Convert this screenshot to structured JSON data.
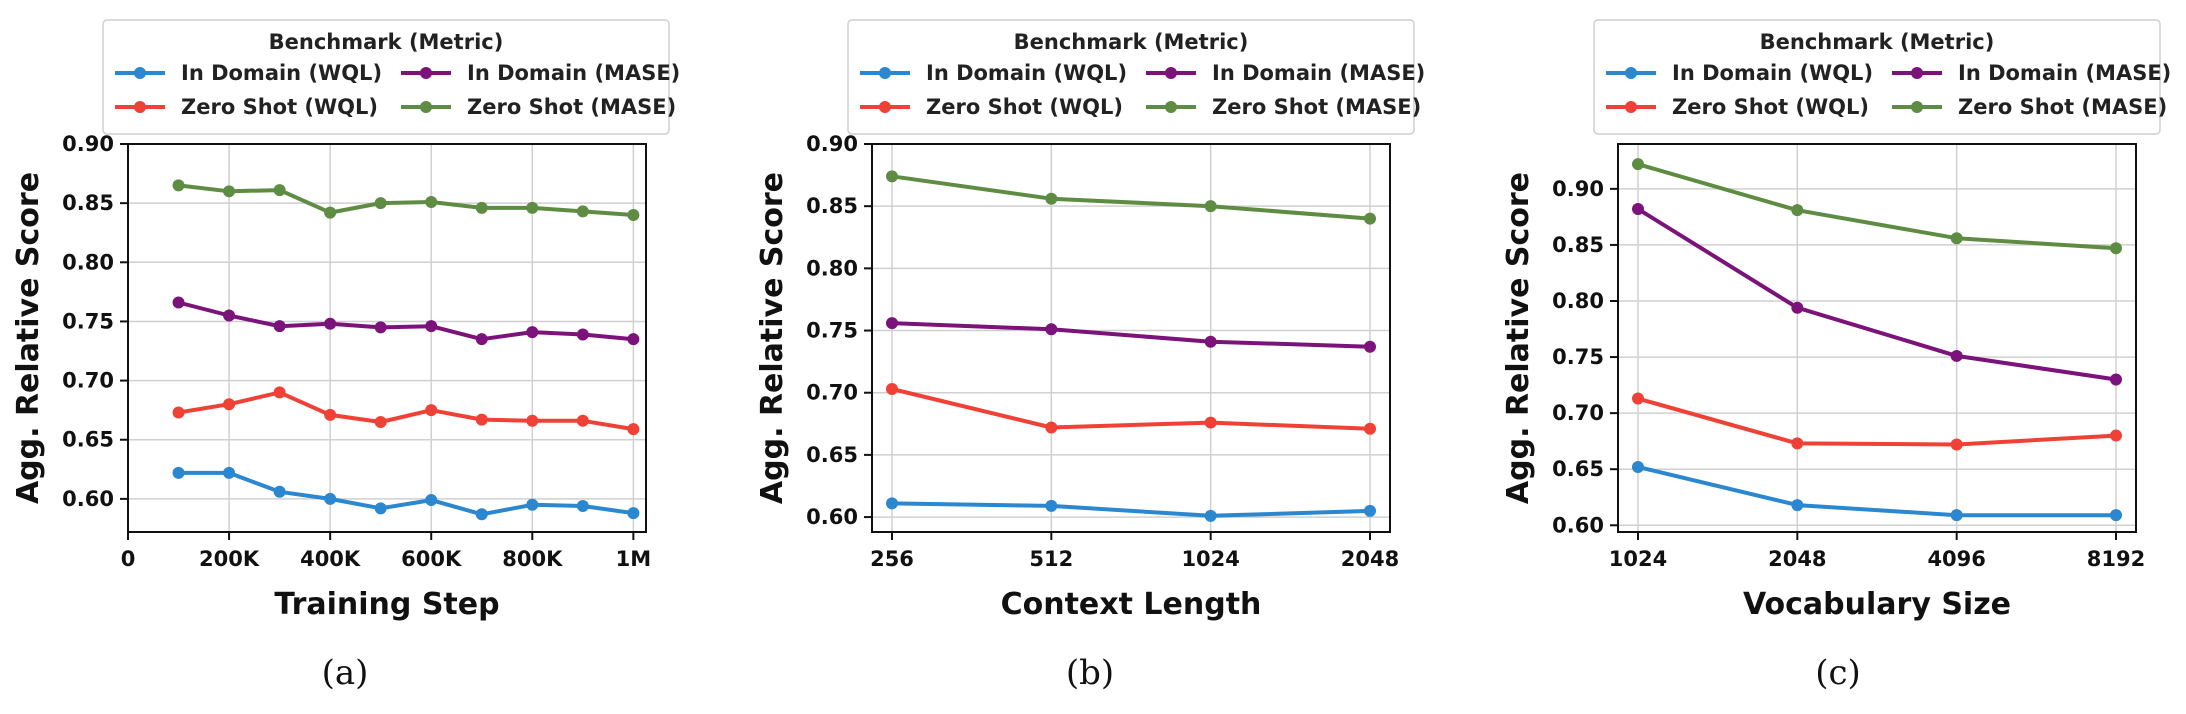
{
  "colors": {
    "in_domain_wql": "#2a87d0",
    "in_domain_mase": "#7b137a",
    "zero_shot_wql": "#ef4136",
    "zero_shot_mase": "#5f8c43"
  },
  "chart_data": [
    {
      "type": "line",
      "caption": "(a)",
      "xlabel": "Training Step",
      "ylabel": "Agg. Relative Score",
      "legend_title": "Benchmark (Metric)",
      "legend_position": "top",
      "grid": true,
      "x_scale": "linear",
      "x": [
        100000,
        200000,
        300000,
        400000,
        500000,
        600000,
        700000,
        800000,
        900000,
        1000000
      ],
      "xlim": [
        0,
        1025000
      ],
      "xticks": [
        0,
        200000,
        400000,
        600000,
        800000,
        1000000
      ],
      "xtick_labels": [
        "0",
        "200K",
        "400K",
        "600K",
        "800K",
        "1M"
      ],
      "ylim": [
        0.572,
        0.9
      ],
      "yticks": [
        0.6,
        0.65,
        0.7,
        0.75,
        0.8,
        0.85,
        0.9
      ],
      "ytick_labels": [
        "0.60",
        "0.65",
        "0.70",
        "0.75",
        "0.80",
        "0.85",
        "0.90"
      ],
      "series": [
        {
          "name": "In Domain (WQL)",
          "color_key": "in_domain_wql",
          "values": [
            0.622,
            0.622,
            0.606,
            0.6,
            0.592,
            0.599,
            0.587,
            0.595,
            0.594,
            0.588
          ]
        },
        {
          "name": "In Domain (MASE)",
          "color_key": "in_domain_mase",
          "values": [
            0.766,
            0.755,
            0.746,
            0.748,
            0.745,
            0.746,
            0.735,
            0.741,
            0.739,
            0.735
          ]
        },
        {
          "name": "Zero Shot (WQL)",
          "color_key": "zero_shot_wql",
          "values": [
            0.673,
            0.68,
            0.69,
            0.671,
            0.665,
            0.675,
            0.667,
            0.666,
            0.666,
            0.659
          ]
        },
        {
          "name": "Zero Shot (MASE)",
          "color_key": "zero_shot_mase",
          "values": [
            0.865,
            0.86,
            0.861,
            0.842,
            0.85,
            0.851,
            0.846,
            0.846,
            0.843,
            0.84
          ]
        }
      ]
    },
    {
      "type": "line",
      "caption": "(b)",
      "xlabel": "Context Length",
      "ylabel": "Agg. Relative Score",
      "legend_title": "Benchmark (Metric)",
      "legend_position": "top",
      "grid": true,
      "x_scale": "categorical",
      "categories": [
        "256",
        "512",
        "1024",
        "2048"
      ],
      "ylim": [
        0.588,
        0.9
      ],
      "yticks": [
        0.6,
        0.65,
        0.7,
        0.75,
        0.8,
        0.85,
        0.9
      ],
      "ytick_labels": [
        "0.60",
        "0.65",
        "0.70",
        "0.75",
        "0.80",
        "0.85",
        "0.90"
      ],
      "series": [
        {
          "name": "In Domain (WQL)",
          "color_key": "in_domain_wql",
          "values": [
            0.611,
            0.609,
            0.601,
            0.605
          ]
        },
        {
          "name": "In Domain (MASE)",
          "color_key": "in_domain_mase",
          "values": [
            0.756,
            0.751,
            0.741,
            0.737
          ]
        },
        {
          "name": "Zero Shot (WQL)",
          "color_key": "zero_shot_wql",
          "values": [
            0.703,
            0.672,
            0.676,
            0.671
          ]
        },
        {
          "name": "Zero Shot (MASE)",
          "color_key": "zero_shot_mase",
          "values": [
            0.874,
            0.856,
            0.85,
            0.84
          ]
        }
      ]
    },
    {
      "type": "line",
      "caption": "(c)",
      "xlabel": "Vocabulary Size",
      "ylabel": "Agg. Relative Score",
      "legend_title": "Benchmark (Metric)",
      "legend_position": "top",
      "grid": true,
      "x_scale": "categorical",
      "categories": [
        "1024",
        "2048",
        "4096",
        "8192"
      ],
      "ylim": [
        0.594,
        0.94
      ],
      "yticks": [
        0.6,
        0.65,
        0.7,
        0.75,
        0.8,
        0.85,
        0.9
      ],
      "ytick_labels": [
        "0.60",
        "0.65",
        "0.70",
        "0.75",
        "0.80",
        "0.85",
        "0.90"
      ],
      "series": [
        {
          "name": "In Domain (WQL)",
          "color_key": "in_domain_wql",
          "values": [
            0.652,
            0.618,
            0.609,
            0.609
          ]
        },
        {
          "name": "In Domain (MASE)",
          "color_key": "in_domain_mase",
          "values": [
            0.882,
            0.794,
            0.751,
            0.73
          ]
        },
        {
          "name": "Zero Shot (WQL)",
          "color_key": "zero_shot_wql",
          "values": [
            0.713,
            0.673,
            0.672,
            0.68
          ]
        },
        {
          "name": "Zero Shot (MASE)",
          "color_key": "zero_shot_mase",
          "values": [
            0.922,
            0.881,
            0.856,
            0.847
          ]
        }
      ]
    }
  ]
}
